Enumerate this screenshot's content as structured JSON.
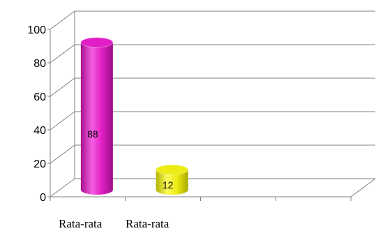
{
  "chart_data": {
    "type": "bar",
    "style": "3d-cylinder",
    "categories": [
      "Rata-rata",
      "Rata-rata"
    ],
    "values": [
      88,
      12
    ],
    "data_labels": [
      "88",
      "12"
    ],
    "bar_colors": [
      "#e21fc6",
      "#ecec14"
    ],
    "ylim": [
      0,
      100
    ],
    "yticks": [
      "0",
      "20",
      "40",
      "60",
      "80",
      "100"
    ],
    "grid": true,
    "legend": "none",
    "title": "",
    "xlabel": "",
    "ylabel": ""
  }
}
